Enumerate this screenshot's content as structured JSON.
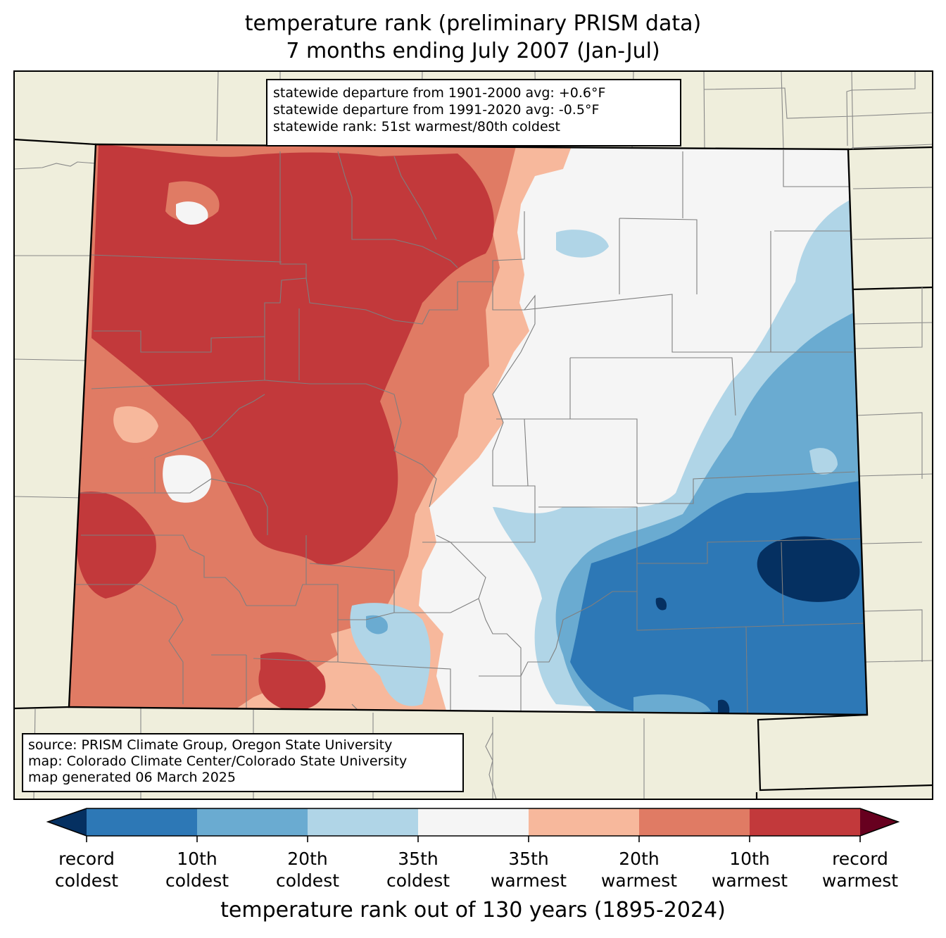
{
  "title": {
    "line1": "temperature rank (preliminary PRISM data)",
    "line2": "7 months ending July 2007 (Jan-Jul)"
  },
  "stats": {
    "line1": "statewide departure from 1901-2000 avg: +0.6°F",
    "line2": "statewide departure from 1991-2020 avg: -0.5°F",
    "line3": "statewide rank: 51st warmest/80th coldest"
  },
  "source": {
    "line1": "source: PRISM Climate Group, Oregon State University",
    "line2": "map: Colorado Climate Center/Colorado State University",
    "line3": "map generated 06 March 2025"
  },
  "legend": {
    "title": "temperature rank out of 130 years (1895-2024)",
    "colors": [
      "#053061",
      "#2d78b6",
      "#6aabd1",
      "#b0d5e7",
      "#f5f5f5",
      "#f7b89c",
      "#e07b64",
      "#c2393b",
      "#67001f"
    ],
    "ticks": [
      {
        "line1": "record",
        "line2": "coldest"
      },
      {
        "line1": "10th",
        "line2": "coldest"
      },
      {
        "line1": "20th",
        "line2": "coldest"
      },
      {
        "line1": "35th",
        "line2": "coldest"
      },
      {
        "line1": "35th",
        "line2": "warmest"
      },
      {
        "line1": "20th",
        "line2": "warmest"
      },
      {
        "line1": "10th",
        "line2": "warmest"
      },
      {
        "line1": "record",
        "line2": "warmest"
      }
    ]
  },
  "map": {
    "land_color": "#efeedc",
    "state": "Colorado"
  }
}
